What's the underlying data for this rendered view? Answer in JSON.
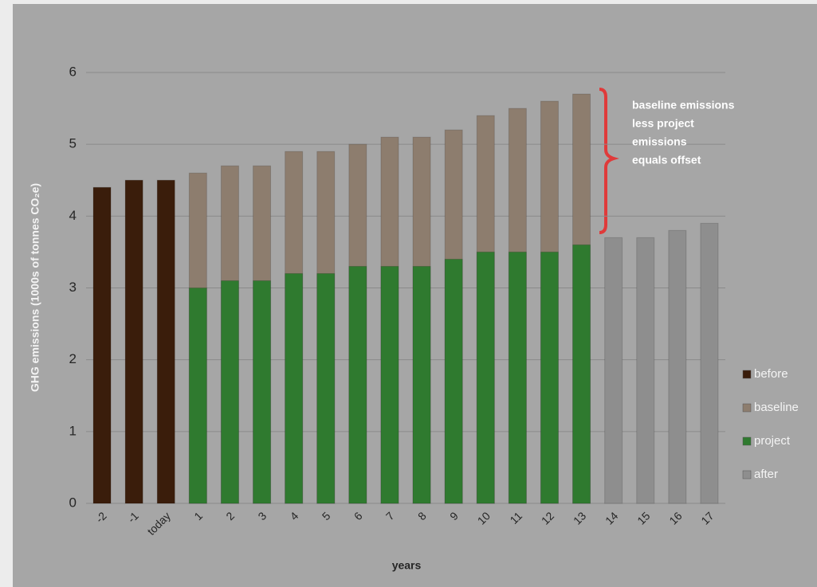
{
  "chart_data": {
    "type": "bar",
    "ylabel": "GHG emissions  (1000s of tonnes CO₂e)",
    "xlabel": "years",
    "categories": [
      "-2",
      "-1",
      "today",
      "1",
      "2",
      "3",
      "4",
      "5",
      "6",
      "7",
      "8",
      "9",
      "10",
      "11",
      "12",
      "13",
      "14",
      "15",
      "16",
      "17"
    ],
    "series": [
      {
        "name": "before",
        "color": "#3a1d0b",
        "values": [
          4.4,
          4.5,
          4.5,
          null,
          null,
          null,
          null,
          null,
          null,
          null,
          null,
          null,
          null,
          null,
          null,
          null,
          null,
          null,
          null,
          null
        ]
      },
      {
        "name": "baseline",
        "color": "#8d7d6e",
        "values": [
          null,
          null,
          null,
          4.6,
          4.7,
          4.7,
          4.9,
          4.9,
          5.0,
          5.1,
          5.1,
          5.2,
          5.4,
          5.5,
          5.6,
          5.7,
          null,
          null,
          null,
          null
        ]
      },
      {
        "name": "project",
        "color": "#2f7a2f",
        "values": [
          null,
          null,
          null,
          3.0,
          3.1,
          3.1,
          3.2,
          3.2,
          3.3,
          3.3,
          3.3,
          3.4,
          3.5,
          3.5,
          3.5,
          3.6,
          null,
          null,
          null,
          null
        ]
      },
      {
        "name": "after",
        "color": "#8e8e8e",
        "values": [
          null,
          null,
          null,
          null,
          null,
          null,
          null,
          null,
          null,
          null,
          null,
          null,
          null,
          null,
          null,
          null,
          3.7,
          3.7,
          3.8,
          3.9
        ]
      }
    ],
    "ylim": [
      0,
      6
    ],
    "yticks": [
      0,
      1,
      2,
      3,
      4,
      5,
      6
    ],
    "grid": true,
    "legend": "right",
    "annotation": [
      "baseline emissions",
      "less project",
      "emissions",
      "equals offset"
    ]
  }
}
